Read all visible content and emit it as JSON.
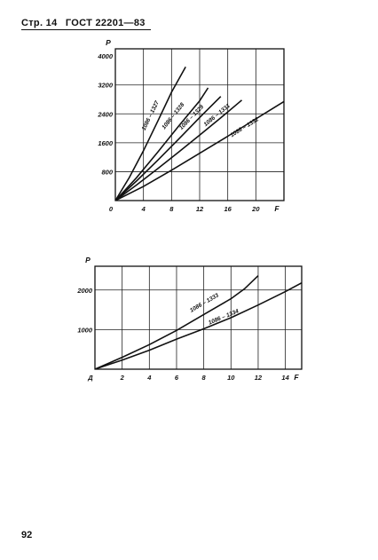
{
  "header": {
    "page_label": "Стр. 14",
    "standard": "ГОСТ 22201—83"
  },
  "page_number": "92",
  "chart_data": [
    {
      "type": "line",
      "ylabel": "P",
      "xlabel": "F",
      "xlim": [
        0,
        24
      ],
      "ylim": [
        0,
        4200
      ],
      "x_ticks": [
        0,
        4,
        8,
        12,
        16,
        20
      ],
      "x_tick_labels": [
        "0",
        "4",
        "8",
        "12",
        "16",
        "20"
      ],
      "y_ticks": [
        800,
        1600,
        2400,
        3200,
        4000
      ],
      "y_tick_labels": [
        "800",
        "1600",
        "2400",
        "3200",
        "4000"
      ],
      "grid": true,
      "series": [
        {
          "name": "1086 – 1327",
          "x": [
            0,
            2,
            4,
            6,
            8,
            10
          ],
          "y": [
            0,
            640,
            1380,
            2180,
            3000,
            3700
          ]
        },
        {
          "name": "1086 – 1328",
          "x": [
            0,
            3,
            6,
            9,
            12,
            13.2
          ],
          "y": [
            0,
            630,
            1330,
            2060,
            2760,
            3120
          ]
        },
        {
          "name": "1086 – 1329",
          "x": [
            0,
            3,
            6,
            9,
            12,
            15
          ],
          "y": [
            0,
            540,
            1110,
            1700,
            2300,
            2880
          ]
        },
        {
          "name": "1086 – 1331",
          "x": [
            0,
            3,
            6,
            9,
            12,
            15,
            18
          ],
          "y": [
            0,
            430,
            880,
            1340,
            1810,
            2290,
            2780
          ]
        },
        {
          "name": "1086 – 1332",
          "x": [
            0,
            4,
            8,
            12,
            16,
            20,
            24
          ],
          "y": [
            0,
            390,
            840,
            1310,
            1780,
            2260,
            2740
          ]
        }
      ]
    },
    {
      "type": "line",
      "ylabel": "P",
      "xlabel": "F",
      "xlim": [
        0,
        15.2
      ],
      "ylim": [
        0,
        2600
      ],
      "x_ticks": [
        0,
        2,
        4,
        6,
        8,
        10,
        12,
        14
      ],
      "x_tick_labels": [
        "Д",
        "2",
        "4",
        "6",
        "8",
        "10",
        "12",
        "14"
      ],
      "y_ticks": [
        1000,
        2000
      ],
      "y_tick_labels": [
        "1000",
        "2000"
      ],
      "grid": true,
      "series": [
        {
          "name": "1086 – 1333",
          "x": [
            0,
            2,
            4,
            6,
            8,
            10,
            11,
            12
          ],
          "y": [
            0,
            300,
            620,
            980,
            1380,
            1780,
            2030,
            2360
          ]
        },
        {
          "name": "1086 – 1334",
          "x": [
            0,
            2,
            4,
            6,
            8,
            10,
            12,
            14,
            15.2
          ],
          "y": [
            0,
            230,
            480,
            760,
            1020,
            1300,
            1620,
            1960,
            2180
          ]
        }
      ]
    }
  ]
}
